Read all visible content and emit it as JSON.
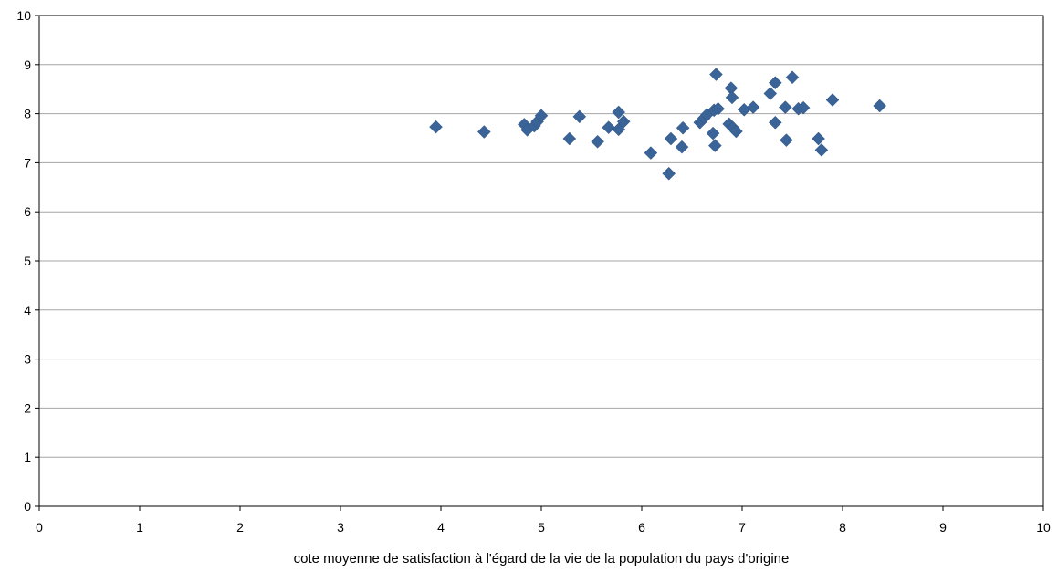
{
  "chart_data": {
    "type": "scatter",
    "title": "",
    "xlabel": "cote moyenne de satisfaction à l'égard de la vie de la population du pays d'origine",
    "ylabel": "",
    "xlim": [
      0,
      10
    ],
    "ylim": [
      0,
      10
    ],
    "xticks": [
      "0",
      "1",
      "2",
      "3",
      "4",
      "5",
      "6",
      "7",
      "8",
      "9",
      "10"
    ],
    "yticks": [
      "0",
      "1",
      "2",
      "3",
      "4",
      "5",
      "6",
      "7",
      "8",
      "9",
      "10"
    ],
    "grid": "horizontal",
    "legend": "none",
    "marker": "diamond",
    "marker_color": "#3A6497",
    "points": [
      [
        3.95,
        7.73
      ],
      [
        4.43,
        7.63
      ],
      [
        4.83,
        7.78
      ],
      [
        4.86,
        7.67
      ],
      [
        4.93,
        7.75
      ],
      [
        4.96,
        7.84
      ],
      [
        5.0,
        7.96
      ],
      [
        5.28,
        7.49
      ],
      [
        5.38,
        7.94
      ],
      [
        5.56,
        7.43
      ],
      [
        5.67,
        7.72
      ],
      [
        5.77,
        7.68
      ],
      [
        5.77,
        8.03
      ],
      [
        5.82,
        7.84
      ],
      [
        6.09,
        7.2
      ],
      [
        6.27,
        6.78
      ],
      [
        6.29,
        7.49
      ],
      [
        6.4,
        7.32
      ],
      [
        6.41,
        7.71
      ],
      [
        6.58,
        7.82
      ],
      [
        6.62,
        7.91
      ],
      [
        6.65,
        7.98
      ],
      [
        6.71,
        7.6
      ],
      [
        6.72,
        8.07
      ],
      [
        6.73,
        7.35
      ],
      [
        6.74,
        8.8
      ],
      [
        6.76,
        8.1
      ],
      [
        6.87,
        7.79
      ],
      [
        6.89,
        8.52
      ],
      [
        6.9,
        8.33
      ],
      [
        6.91,
        7.71
      ],
      [
        6.94,
        7.64
      ],
      [
        7.02,
        8.08
      ],
      [
        7.11,
        8.13
      ],
      [
        7.28,
        8.41
      ],
      [
        7.33,
        8.63
      ],
      [
        7.33,
        7.82
      ],
      [
        7.43,
        8.13
      ],
      [
        7.44,
        7.46
      ],
      [
        7.5,
        8.74
      ],
      [
        7.56,
        8.1
      ],
      [
        7.61,
        8.12
      ],
      [
        7.76,
        7.49
      ],
      [
        7.79,
        7.26
      ],
      [
        7.9,
        8.28
      ],
      [
        8.37,
        8.16
      ]
    ]
  }
}
